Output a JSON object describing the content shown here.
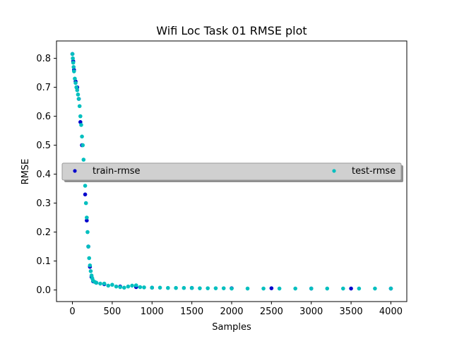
{
  "chart_data": {
    "type": "scatter",
    "title": "Wifi Loc Task 01 RMSE plot",
    "xlabel": "Samples",
    "ylabel": "RMSE",
    "xlim": [
      -200,
      4200
    ],
    "ylim": [
      -0.04,
      0.86
    ],
    "xticks": [
      0,
      500,
      1000,
      1500,
      2000,
      2500,
      3000,
      3500,
      4000
    ],
    "yticks": [
      0.0,
      0.1,
      0.2,
      0.3,
      0.4,
      0.5,
      0.6,
      0.7,
      0.8
    ],
    "ytick_labels": [
      "0.0",
      "0.1",
      "0.2",
      "0.3",
      "0.4",
      "0.5",
      "0.6",
      "0.7",
      "0.8"
    ],
    "grid": false,
    "legend_placement": "center",
    "series": [
      {
        "name": "train-rmse",
        "color": "#0000cc",
        "x": [
          0,
          10,
          20,
          40,
          60,
          80,
          100,
          120,
          140,
          160,
          180,
          200,
          220,
          240,
          260,
          300,
          400,
          600,
          800,
          1000,
          1500,
          2000,
          2500,
          3000,
          3500,
          4000
        ],
        "y": [
          0.815,
          0.79,
          0.76,
          0.72,
          0.7,
          0.66,
          0.58,
          0.5,
          0.4,
          0.33,
          0.24,
          0.15,
          0.08,
          0.045,
          0.03,
          0.025,
          0.02,
          0.012,
          0.01,
          0.008,
          0.007,
          0.006,
          0.006,
          0.005,
          0.005,
          0.005
        ]
      },
      {
        "name": "test-rmse",
        "color": "#00bfbf",
        "x": [
          0,
          5,
          10,
          15,
          20,
          30,
          40,
          50,
          60,
          70,
          80,
          90,
          100,
          110,
          120,
          130,
          140,
          150,
          160,
          170,
          180,
          190,
          200,
          210,
          220,
          230,
          240,
          250,
          260,
          280,
          300,
          350,
          400,
          450,
          500,
          550,
          600,
          650,
          700,
          750,
          800,
          850,
          900,
          1000,
          1100,
          1200,
          1300,
          1400,
          1500,
          1600,
          1700,
          1800,
          1900,
          2000,
          2200,
          2400,
          2600,
          2800,
          3000,
          3200,
          3400,
          3600,
          3800,
          4000
        ],
        "y": [
          0.815,
          0.8,
          0.785,
          0.77,
          0.755,
          0.73,
          0.715,
          0.7,
          0.69,
          0.675,
          0.66,
          0.635,
          0.6,
          0.57,
          0.53,
          0.5,
          0.45,
          0.4,
          0.36,
          0.3,
          0.25,
          0.2,
          0.15,
          0.11,
          0.085,
          0.065,
          0.05,
          0.04,
          0.032,
          0.028,
          0.025,
          0.022,
          0.022,
          0.015,
          0.018,
          0.012,
          0.01,
          0.008,
          0.012,
          0.015,
          0.016,
          0.01,
          0.009,
          0.008,
          0.008,
          0.007,
          0.007,
          0.007,
          0.007,
          0.006,
          0.006,
          0.006,
          0.006,
          0.005,
          0.005,
          0.005,
          0.005,
          0.005,
          0.005,
          0.005,
          0.005,
          0.005,
          0.005,
          0.005
        ]
      }
    ]
  }
}
